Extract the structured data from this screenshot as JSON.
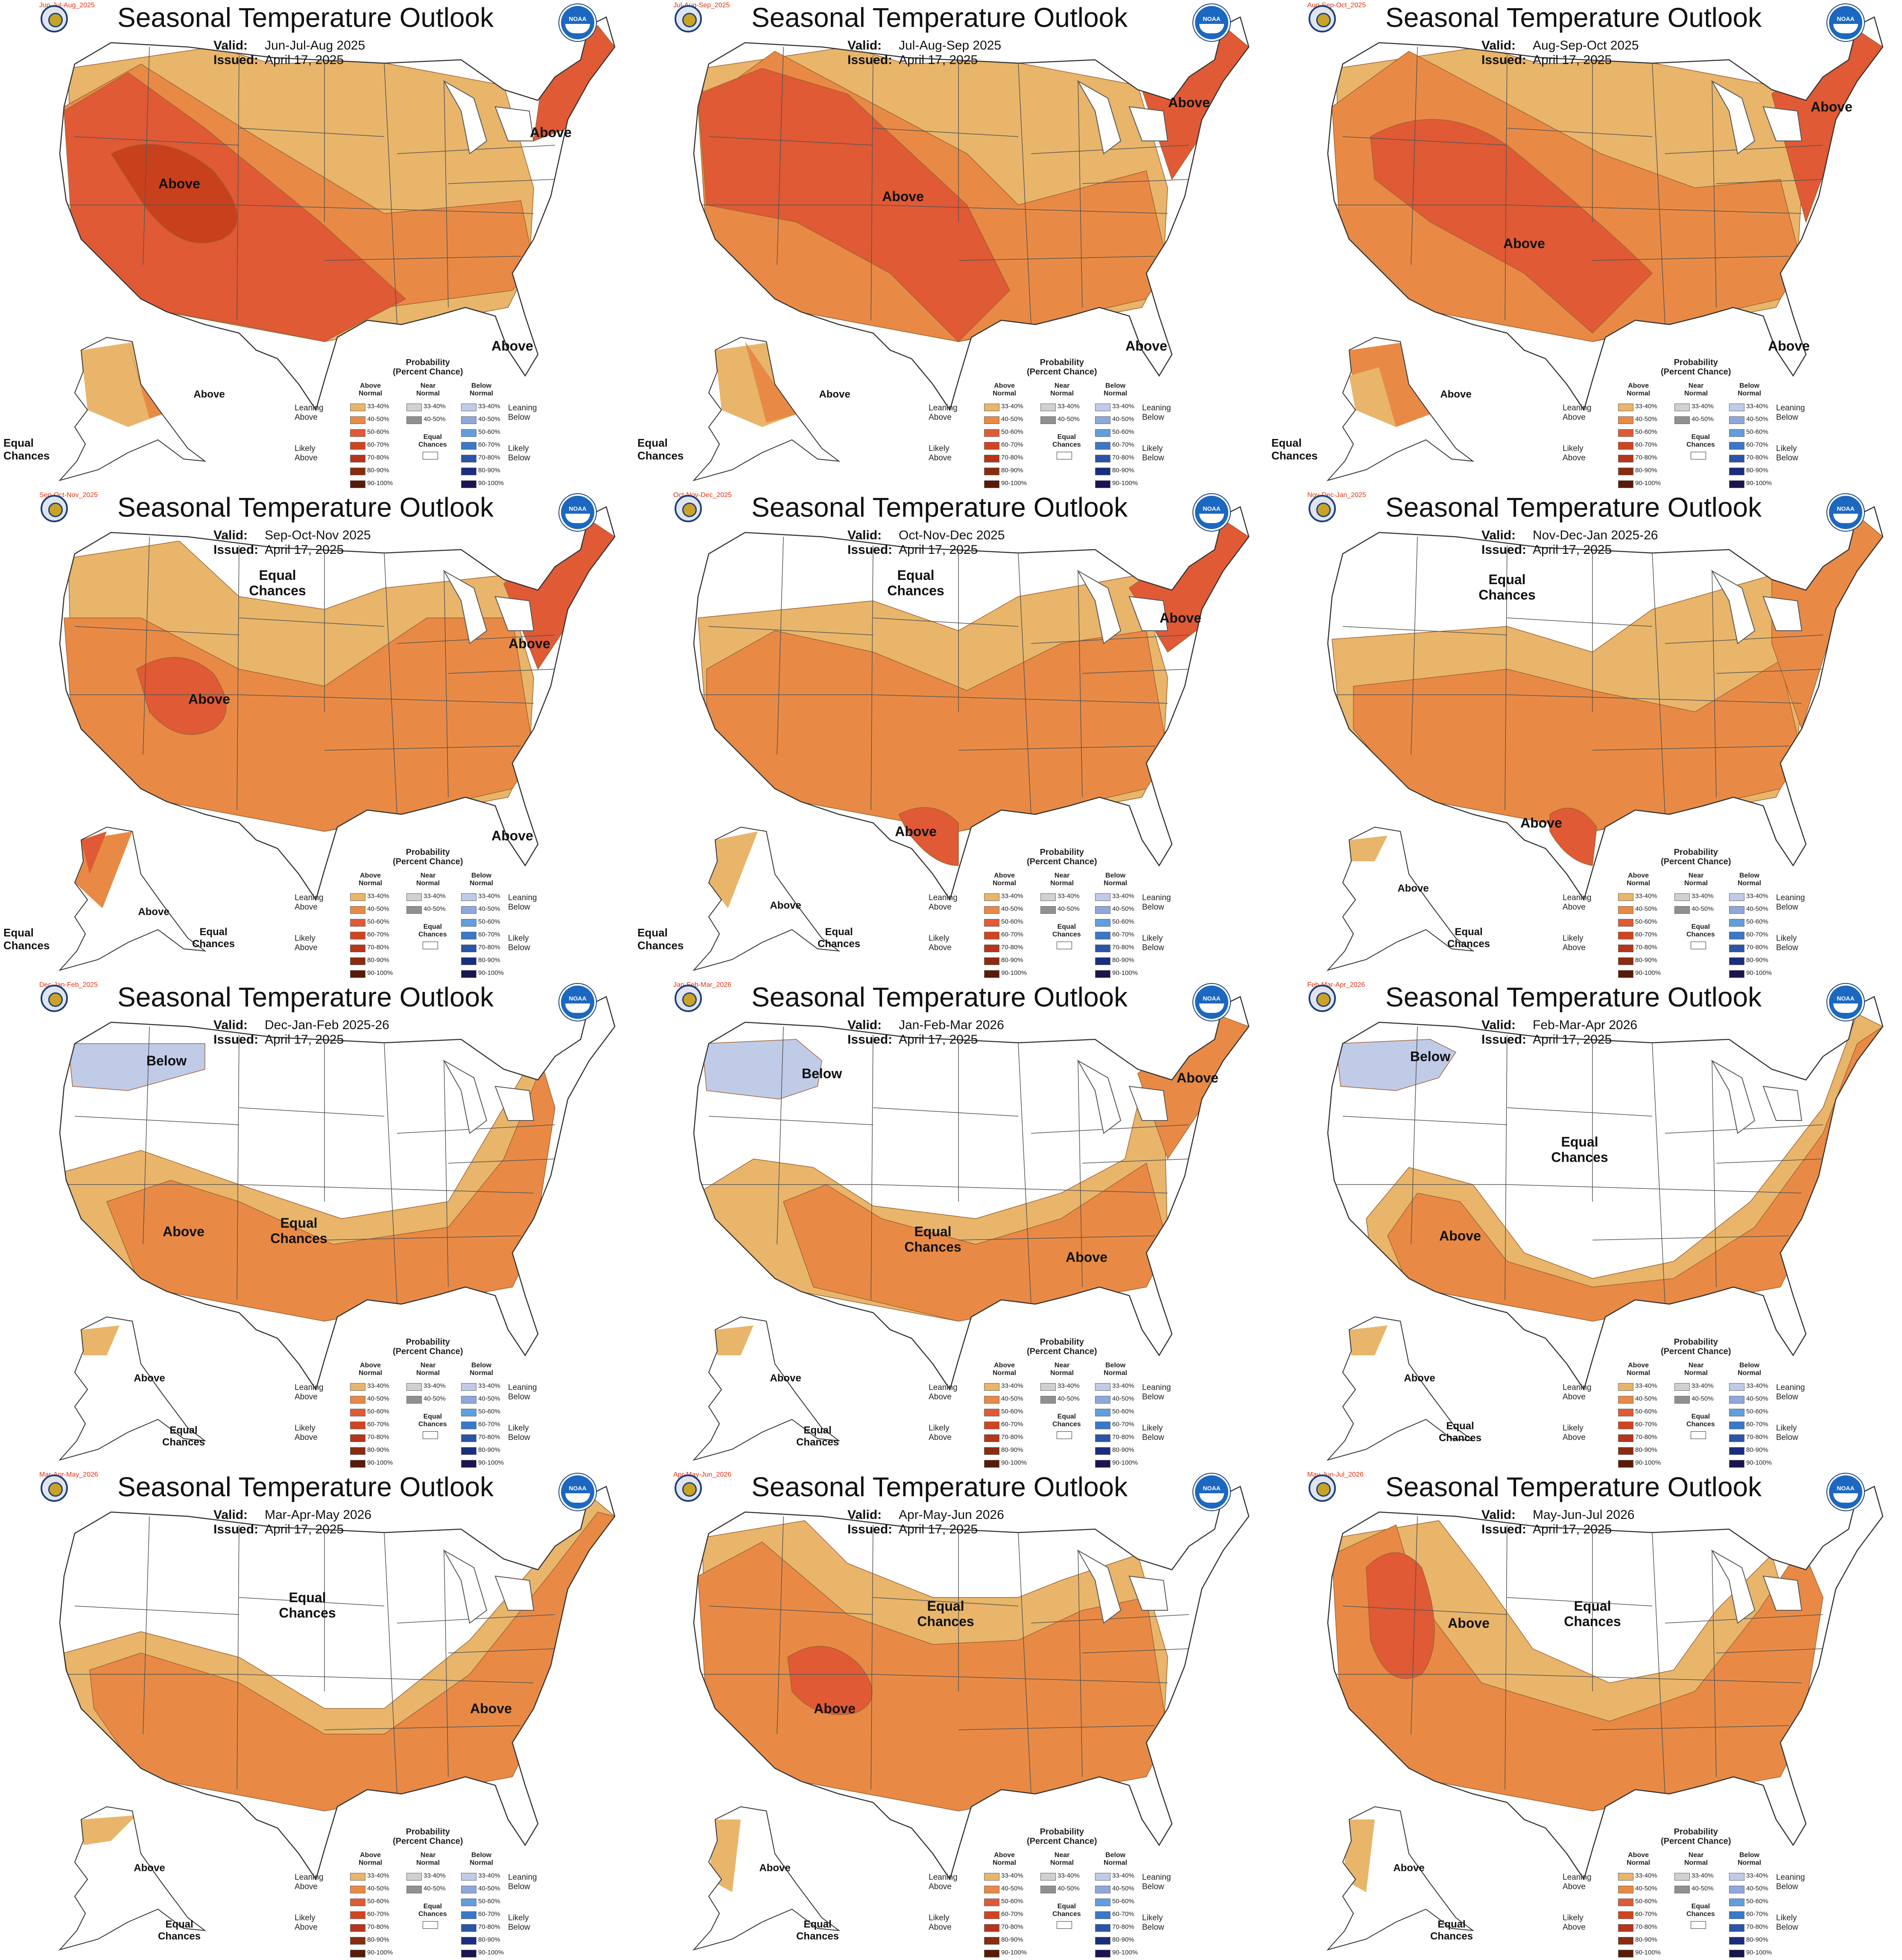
{
  "title": "Seasonal Temperature Outlook",
  "valid_label": "Valid:",
  "issued_label": "Issued:",
  "noaa_logo_text": "NOAA",
  "seal_icon": "doc-seal-icon",
  "legend": {
    "title": "Probability\n(Percent Chance)",
    "above_header": "Above\nNormal",
    "near_header": "Near\nNormal",
    "below_header": "Below\nNormal",
    "leaning_above": "Leaning\nAbove",
    "likely_above": "Likely\nAbove",
    "leaning_below": "Leaning\nBelow",
    "likely_below": "Likely\nBelow",
    "equal_chances": "Equal\nChances",
    "above_bins": [
      {
        "label": "33-40%",
        "color": "#e8b56b"
      },
      {
        "label": "40-50%",
        "color": "#e88a45"
      },
      {
        "label": "50-60%",
        "color": "#e05a35"
      },
      {
        "label": "60-70%",
        "color": "#d04520"
      },
      {
        "label": "70-80%",
        "color": "#b8341a"
      },
      {
        "label": "80-90%",
        "color": "#8b2b10"
      },
      {
        "label": "90-100%",
        "color": "#5a1a08"
      }
    ],
    "near_bins": [
      {
        "label": "33-40%",
        "color": "#d0d0d0"
      },
      {
        "label": "40-50%",
        "color": "#909090"
      }
    ],
    "below_bins": [
      {
        "label": "33-40%",
        "color": "#c0cbe8"
      },
      {
        "label": "40-50%",
        "color": "#8fa8dc"
      },
      {
        "label": "50-60%",
        "color": "#5f9fe0"
      },
      {
        "label": "60-70%",
        "color": "#3a78c8"
      },
      {
        "label": "70-80%",
        "color": "#2a55a8"
      },
      {
        "label": "80-90%",
        "color": "#1a2e80"
      },
      {
        "label": "90-100%",
        "color": "#1a1550"
      }
    ]
  },
  "colors": {
    "above_33_40": "#e8b56b",
    "above_40_50": "#e88a45",
    "above_50_60": "#e05a35",
    "above_60_70": "#c9401c",
    "below_33_40": "#c0cbe8",
    "land": "#ffffff",
    "border": "#555555"
  },
  "panels": [
    {
      "tag": "Jun-Jul-Aug_2025",
      "valid": "Jun-Jul-Aug 2025",
      "issued": "April 17, 2025",
      "labels": [
        "Above",
        "Above",
        "Above",
        "Above"
      ],
      "alaska_label": "Above",
      "ec_label": "Equal\nChances"
    },
    {
      "tag": "Jul-Aug-Sep_2025",
      "valid": "Jul-Aug-Sep 2025",
      "issued": "April 17, 2025",
      "labels": [
        "Above",
        "Above",
        "Above"
      ],
      "alaska_label": "Above",
      "ec_label": "Equal\nChances"
    },
    {
      "tag": "Aug-Sep-Oct_2025",
      "valid": "Aug-Sep-Oct 2025",
      "issued": "April 17, 2025",
      "labels": [
        "Above",
        "Above",
        "Above"
      ],
      "alaska_label": "Above",
      "ec_label": "Equal\nChances"
    },
    {
      "tag": "Sep-Oct-Nov_2025",
      "valid": "Sep-Oct-Nov 2025",
      "issued": "April 17, 2025",
      "labels": [
        "Equal\nChances",
        "Above",
        "Above",
        "Above"
      ],
      "alaska_label": "Above",
      "alaska_ec": "Equal\nChances",
      "ec_label": "Equal\nChances"
    },
    {
      "tag": "Oct-Nov-Dec_2025",
      "valid": "Oct-Nov-Dec 2025",
      "issued": "April 17, 2025",
      "labels": [
        "Equal\nChances",
        "Above",
        "Above"
      ],
      "alaska_label": "Above",
      "alaska_ec": "Equal\nChances",
      "ec_label": "Equal\nChances"
    },
    {
      "tag": "Nov-Dec-Jan_2025",
      "valid": "Nov-Dec-Jan 2025-26",
      "issued": "April 17, 2025",
      "labels": [
        "Equal\nChances",
        "Above"
      ],
      "alaska_label": "Above",
      "alaska_ec": "Equal\nChances",
      "ec_label": ""
    },
    {
      "tag": "Dec-Jan-Feb_2025",
      "valid": "Dec-Jan-Feb 2025-26",
      "issued": "April 17, 2025",
      "labels": [
        "Below",
        "Equal\nChances",
        "Above"
      ],
      "alaska_label": "Above",
      "alaska_ec": "Equal\nChances",
      "ec_label": ""
    },
    {
      "tag": "Jan-Feb-Mar_2026",
      "valid": "Jan-Feb-Mar 2026",
      "issued": "April 17, 2025",
      "labels": [
        "Below",
        "Equal\nChances",
        "Above",
        "Above"
      ],
      "alaska_label": "Above",
      "alaska_ec": "Equal\nChances",
      "ec_label": ""
    },
    {
      "tag": "Feb-Mar-Apr_2026",
      "valid": "Feb-Mar-Apr 2026",
      "issued": "April 17, 2025",
      "labels": [
        "Below",
        "Equal\nChances",
        "Above"
      ],
      "alaska_label": "Above",
      "alaska_ec": "Equal\nChances",
      "ec_label": ""
    },
    {
      "tag": "Mar-Apr-May_2026",
      "valid": "Mar-Apr-May 2026",
      "issued": "April 17, 2025",
      "labels": [
        "Equal\nChances",
        "Above"
      ],
      "alaska_label": "Above",
      "alaska_ec": "Equal\nChances",
      "ec_label": ""
    },
    {
      "tag": "Apr-May-Jun_2026",
      "valid": "Apr-May-Jun 2026",
      "issued": "April 17, 2025",
      "labels": [
        "Equal\nChances",
        "Above"
      ],
      "alaska_label": "Above",
      "alaska_ec": "Equal\nChances",
      "ec_label": ""
    },
    {
      "tag": "May-Jun-Jul_2026",
      "valid": "May-Jun-Jul 2026",
      "issued": "April 17, 2025",
      "labels": [
        "Above",
        "Equal\nChances"
      ],
      "alaska_label": "Above",
      "alaska_ec": "Equal\nChances",
      "ec_label": ""
    }
  ]
}
